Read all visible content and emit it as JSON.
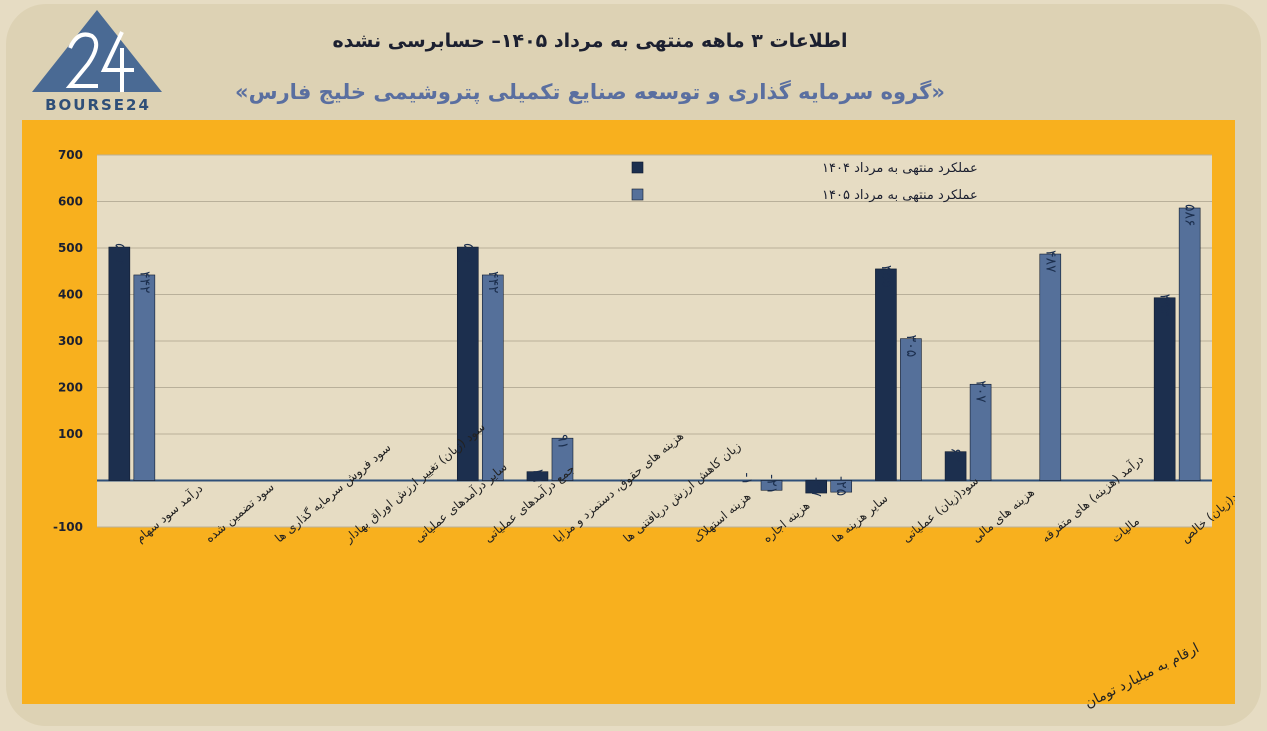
{
  "header": {
    "title": "اطلاعات ۳ ماهه منتهی به مرداد ۱۴۰۵– حسابرسی نشده",
    "subtitle": "«گروه سرمایه گذاری و توسعه صنایع تکمیلی پتروشیمی خلیج فارس»",
    "logo_text": "BOURSE24"
  },
  "footnote": "ارقام به میلیارد تومان",
  "colors": {
    "series_1404": "#1c2f4e",
    "series_1405": "#55709a",
    "panel": "#f8b01e",
    "plot": "#e6dcc3",
    "logo": "#4a6a94"
  },
  "chart_data": {
    "type": "bar",
    "categories": [
      "درآمد سود سهام",
      "سود تضمین شده",
      "سود فروش سرمایه گذاری ها",
      "سود (زیان) تغییر ارزش اوراق بهادار",
      "سایر درآمدهای عملیاتی",
      "جمع درآمدهای عملیاتی",
      "هزینه های حقوق، دستمزد و مزایا",
      "زیان کاهش ارزش دریافتنی ها",
      "هزینه استهلاک",
      "هزینه اجاره",
      "سایر هزینه ها",
      "سود(زیان) عملیاتی",
      "هزینه های مالی",
      "درآمد (هزینه) های متفرقه",
      "مالیات",
      "سود(زیان) خالص"
    ],
    "series": [
      {
        "name": "عملکرد منتهی به مرداد ۱۴۰۴",
        "values": [
          502,
          0,
          0,
          0,
          0,
          502,
          19,
          0,
          0,
          -1,
          -27,
          455,
          62,
          0,
          0,
          393
        ],
        "labels": [
          "۵۰۲",
          "",
          "",
          "",
          "",
          "۵۰۲",
          "۱۹",
          "",
          "",
          "-۱",
          "-۲۷",
          "۴۵۵",
          "۶۲",
          "",
          "",
          "۳۹۳"
        ]
      },
      {
        "name": "عملکرد منتهی به مرداد ۱۴۰۵",
        "values": [
          442,
          0,
          0,
          0,
          0,
          442,
          91,
          0,
          0,
          -21,
          -25,
          305,
          207,
          487,
          0,
          586
        ],
        "labels": [
          "۴۴۲",
          "",
          "",
          "",
          "",
          "۴۴۲",
          "۹۱",
          "",
          "",
          "-۲۱",
          "-۲۵",
          "۳۰۵",
          "۲۰۷",
          "۴۸۷",
          "",
          "۵۸۶"
        ]
      }
    ],
    "yticks": [
      {
        "value": 700,
        "label": "700"
      },
      {
        "value": 600,
        "label": "600"
      },
      {
        "value": 500,
        "label": "500"
      },
      {
        "value": 400,
        "label": "400"
      },
      {
        "value": 300,
        "label": "300"
      },
      {
        "value": 200,
        "label": "200"
      },
      {
        "value": 100,
        "label": "100"
      },
      {
        "value": -100,
        "label": "-100"
      }
    ],
    "ylim": [
      -100,
      700
    ],
    "grid": true,
    "legend_position": "top-center"
  }
}
